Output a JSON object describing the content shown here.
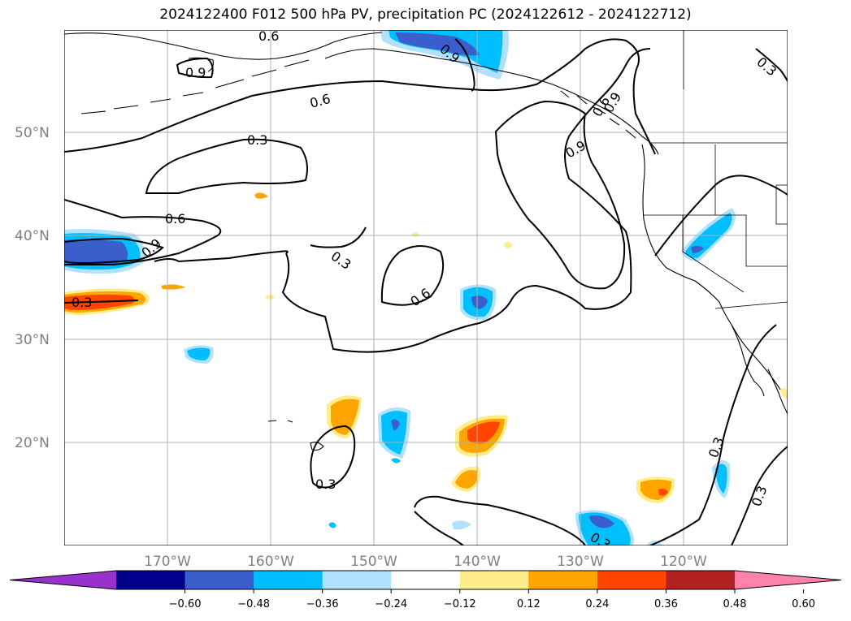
{
  "title": "2024122400 F012 500 hPa PV, precipitation PC (2024122612 - 2024122712)",
  "map": {
    "lat_ticks": [
      "50°N",
      "40°N",
      "30°N",
      "20°N"
    ],
    "lon_ticks": [
      "170°W",
      "160°W",
      "150°W",
      "140°W",
      "130°W",
      "120°W"
    ],
    "contour_labels": [
      "0.9",
      "0.6",
      "0.3",
      "0.6",
      "0.9",
      "0.9",
      "0.3",
      "0.6",
      "0.9",
      "0.3",
      "0.6",
      "0.3",
      "0.3",
      "0.3",
      "0.3",
      "0.3",
      "0.6",
      "0.9"
    ]
  },
  "colorbar": {
    "ticks": [
      "−0.60",
      "−0.48",
      "−0.36",
      "−0.24",
      "−0.12",
      "0.12",
      "0.24",
      "0.36",
      "0.48",
      "0.60"
    ],
    "colors": [
      "#9932cc",
      "#00008b",
      "#3a5fcd",
      "#00bfff",
      "#b0e2ff",
      "#ffffff",
      "#ffec8b",
      "#ffa500",
      "#ff4500",
      "#b22222",
      "#ff82ab"
    ]
  }
}
